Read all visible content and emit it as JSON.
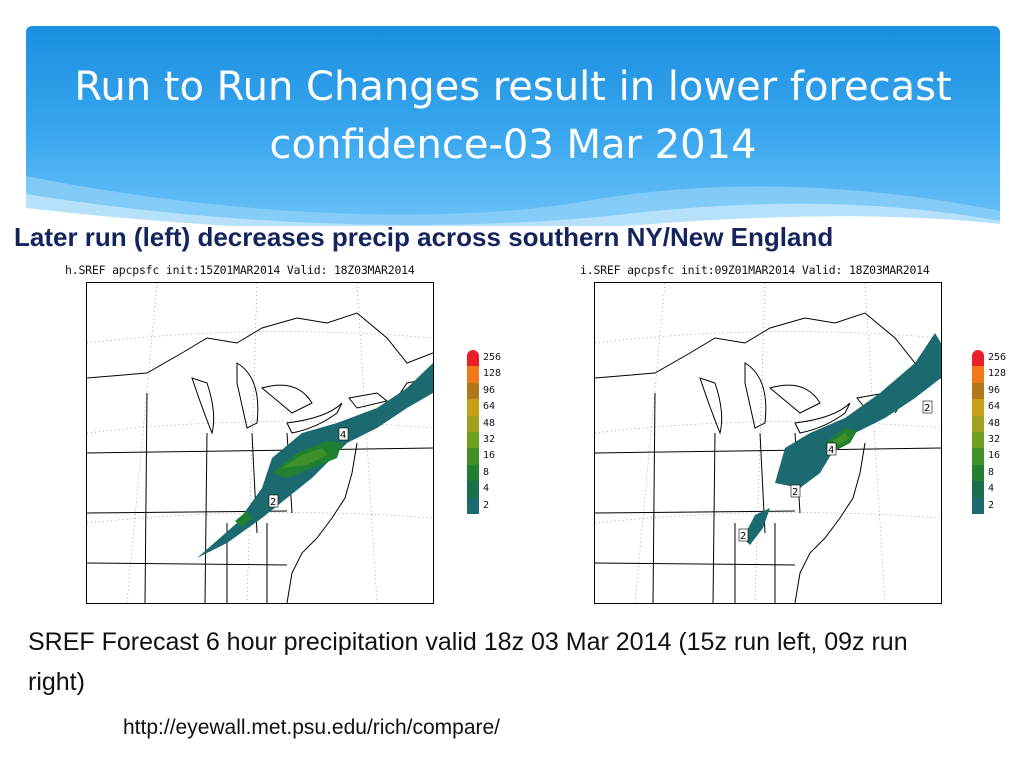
{
  "slide": {
    "title": "Run to Run Changes result in lower forecast confidence-03 Mar 2014",
    "subtitle": "Later run (left) decreases precip across southern NY/New England",
    "body": "SREF Forecast 6 hour precipitation valid 18z 03 Mar 2014 (15z run left, 09z run right)",
    "url": "http://eyewall.met.psu.edu/rich/compare/"
  },
  "maps": {
    "left": {
      "caption": "h.SREF apcpsfc init:15Z01MAR2014 Valid: 18Z03MAR2014",
      "contour_labels": [
        "4",
        "2"
      ]
    },
    "right": {
      "caption": "i.SREF apcpsfc init:09Z01MAR2014 Valid: 18Z03MAR2014",
      "contour_labels": [
        "2",
        "4",
        "2",
        "2"
      ]
    }
  },
  "legend": {
    "levels": [
      "256",
      "128",
      "96",
      "64",
      "48",
      "32",
      "16",
      "8",
      "4",
      "2"
    ],
    "colors": [
      "#e8202a",
      "#f07818",
      "#b07818",
      "#c8a018",
      "#a0a020",
      "#70a020",
      "#40902a",
      "#208030",
      "#1a6e4c",
      "#1a6a70"
    ]
  }
}
